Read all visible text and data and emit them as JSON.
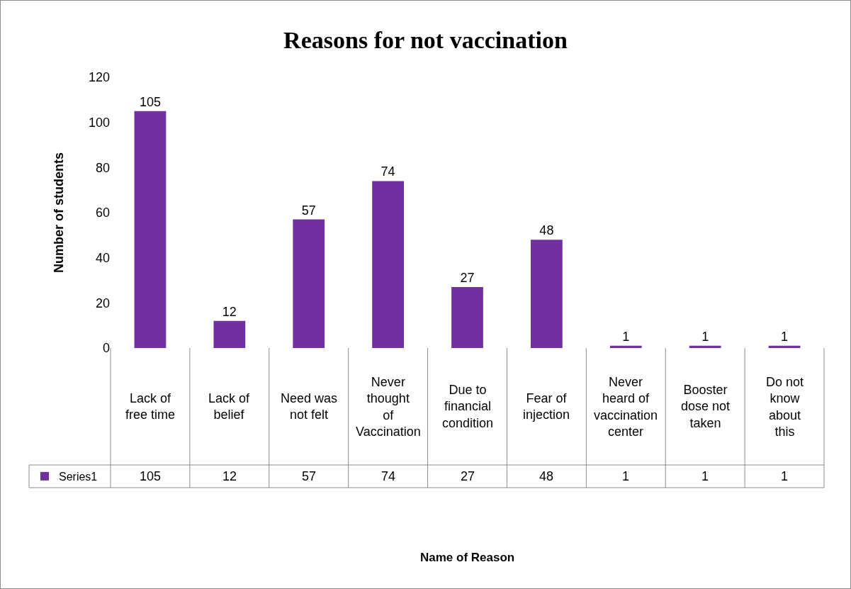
{
  "chart_data": {
    "type": "bar",
    "title": "Reasons for not vaccination",
    "ylabel": "Number of students",
    "categories": [
      "Lack of free time",
      "Lack of belief",
      "Need was not felt",
      "Never thought of Vaccination",
      "Due to financial condition",
      "Fear of injection",
      "Never heard of vaccination center",
      "Booster dose not taken",
      "Do not know about this"
    ],
    "series": [
      {
        "name": "Series1",
        "color": "#7030a0",
        "values": [
          105,
          12,
          57,
          74,
          27,
          48,
          1,
          1,
          1
        ]
      }
    ],
    "totals": [
      "105",
      "12",
      "57",
      "74",
      "27",
      "48",
      "1",
      "1",
      "1"
    ],
    "ylim": [
      0,
      120
    ],
    "yticks": [
      0,
      20,
      40,
      60,
      80,
      100,
      120
    ],
    "grid": false,
    "data_labels": true,
    "legend": "bottom left",
    "annotations": [
      "Name of Reason"
    ]
  }
}
